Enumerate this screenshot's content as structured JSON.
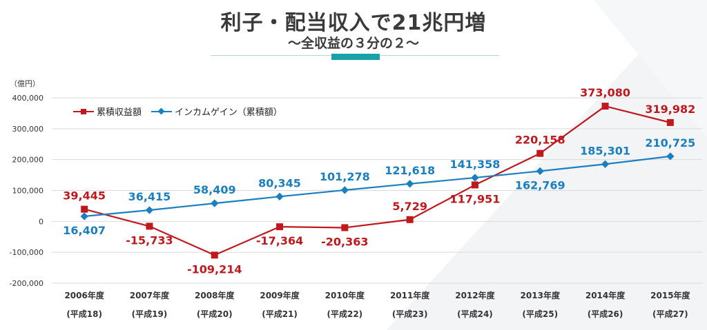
{
  "header": {
    "title": "利子・配当収入で21兆円増",
    "subtitle": "～全収益の３分の２～"
  },
  "chart_data": {
    "type": "line",
    "unit_label": "（億円）",
    "categories": [
      "2006年度",
      "2007年度",
      "2008年度",
      "2009年度",
      "2010年度",
      "2011年度",
      "2012年度",
      "2013年度",
      "2014年度",
      "2015年度"
    ],
    "categories_sub": [
      "(平成18)",
      "(平成19)",
      "(平成20)",
      "(平成21)",
      "(平成22)",
      "(平成23)",
      "(平成24)",
      "(平成25)",
      "(平成26)",
      "(平成27)"
    ],
    "series": [
      {
        "name": "累積収益額",
        "color": "#c0181d",
        "marker": "square",
        "values": [
          39445,
          -15733,
          -109214,
          -17364,
          -20363,
          5729,
          117951,
          220158,
          373080,
          319982
        ],
        "labels": [
          "39,445",
          "-15,733",
          "-109,214",
          "-17,364",
          "-20,363",
          "5,729",
          "117,951",
          "220,158",
          "373,080",
          "319,982"
        ]
      },
      {
        "name": "インカムゲイン（累積額）",
        "color": "#1a7fc1",
        "marker": "diamond",
        "values": [
          16407,
          36415,
          58409,
          80345,
          101278,
          121618,
          141358,
          162769,
          185301,
          210725
        ],
        "labels": [
          "16,407",
          "36,415",
          "58,409",
          "80,345",
          "101,278",
          "121,618",
          "141,358",
          "162,769",
          "185,301",
          "210,725"
        ]
      }
    ],
    "ylim": [
      -200000,
      400000
    ],
    "yticks": [
      400000,
      300000,
      200000,
      100000,
      0,
      -100000,
      -200000
    ],
    "ytick_labels": [
      "400,000",
      "300,000",
      "200,000",
      "100,000",
      "0",
      "-100,000",
      "-200,000"
    ],
    "grid": true,
    "legend_position": "top-left"
  }
}
